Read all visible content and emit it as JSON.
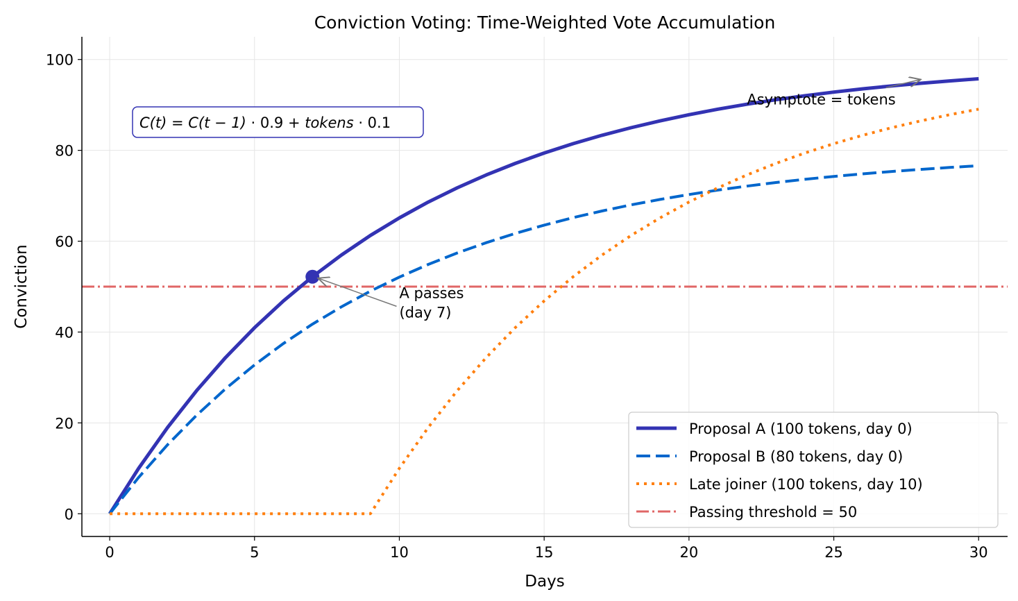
{
  "chart_data": {
    "type": "line",
    "title": "Conviction Voting: Time-Weighted Vote Accumulation",
    "xlabel": "Days",
    "ylabel": "Conviction",
    "xlim": [
      -0.96,
      31.0
    ],
    "ylim": [
      -5,
      105
    ],
    "xticks": [
      0,
      5,
      10,
      15,
      20,
      25,
      30
    ],
    "yticks": [
      0,
      20,
      40,
      60,
      80,
      100
    ],
    "grid": true,
    "legend_position": "bottom-right",
    "x": [
      0,
      1,
      2,
      3,
      4,
      5,
      6,
      7,
      8,
      9,
      10,
      11,
      12,
      13,
      14,
      15,
      16,
      17,
      18,
      19,
      20,
      21,
      22,
      23,
      24,
      25,
      26,
      27,
      28,
      29,
      30
    ],
    "series": [
      {
        "name": "Proposal A (100 tokens, day 0)",
        "color": "#3333b3",
        "style": "solid",
        "values": [
          0,
          10,
          19,
          27.1,
          34.39,
          40.95,
          46.86,
          52.17,
          56.95,
          61.26,
          65.13,
          68.62,
          71.76,
          74.58,
          77.12,
          79.41,
          81.47,
          83.32,
          84.99,
          86.49,
          87.84,
          89.06,
          90.15,
          91.14,
          92.02,
          92.82,
          93.54,
          94.19,
          94.77,
          95.29,
          95.76
        ]
      },
      {
        "name": "Proposal B (80 tokens, day 0)",
        "color": "#0066cc",
        "style": "dashed",
        "values": [
          0,
          8,
          15.2,
          21.68,
          27.51,
          32.76,
          37.49,
          41.74,
          45.56,
          49.01,
          52.1,
          54.89,
          57.41,
          59.67,
          61.7,
          63.53,
          65.18,
          66.66,
          67.99,
          69.19,
          70.27,
          71.25,
          72.12,
          72.91,
          73.62,
          74.26,
          74.83,
          75.35,
          75.81,
          76.23,
          76.61
        ]
      },
      {
        "name": "Late joiner (100 tokens, day 10)",
        "color": "#ff7f0e",
        "style": "dotted",
        "values": [
          0,
          0,
          0,
          0,
          0,
          0,
          0,
          0,
          0,
          0,
          10,
          19,
          27.1,
          34.39,
          40.95,
          46.86,
          52.17,
          56.95,
          61.26,
          65.13,
          68.62,
          71.76,
          74.58,
          77.12,
          79.41,
          81.47,
          83.32,
          84.99,
          86.49,
          87.84,
          89.06
        ]
      }
    ],
    "threshold": {
      "name": "Passing threshold = 50",
      "value": 50,
      "color": "#e06666",
      "style": "dashdot"
    },
    "marker": {
      "x": 7,
      "y": 52.17,
      "color": "#3333b3"
    },
    "annotations": [
      {
        "text_lines": [
          "A passes",
          "(day 7)"
        ],
        "text_x": 10,
        "text_y": 47.5,
        "arrow_to": [
          7,
          52.17
        ]
      },
      {
        "text_lines": [
          "Asymptote = tokens"
        ],
        "text_x": 22,
        "text_y": 91,
        "arrow_from": [
          26.8,
          93.8
        ],
        "arrow_to": [
          28,
          95.6
        ]
      }
    ],
    "formula": {
      "parts": [
        "C(t)",
        " = ",
        "C(t − 1)",
        " · 0.9 + ",
        "tokens",
        " · 0.1"
      ],
      "border_color": "#3333b3"
    }
  }
}
